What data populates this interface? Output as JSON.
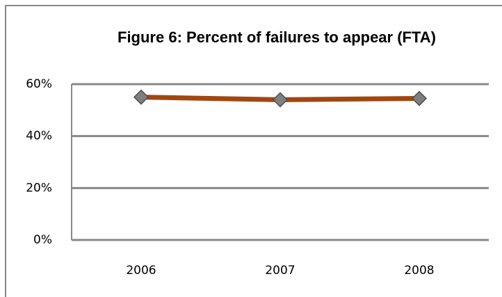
{
  "chart_data": {
    "type": "line",
    "title": "Figure 6:  Percent of failures to appear (FTA)",
    "categories": [
      "2006",
      "2007",
      "2008"
    ],
    "series": [
      {
        "name": "FTA",
        "color": "#a0470f",
        "values": [
          55,
          54,
          54.5
        ]
      }
    ],
    "ylim": [
      0,
      60
    ],
    "yticks": [
      {
        "value": 0,
        "label": "0%"
      },
      {
        "value": 20,
        "label": "20%"
      },
      {
        "value": 40,
        "label": "40%"
      },
      {
        "value": 60,
        "label": "60%"
      }
    ],
    "grid": true
  }
}
